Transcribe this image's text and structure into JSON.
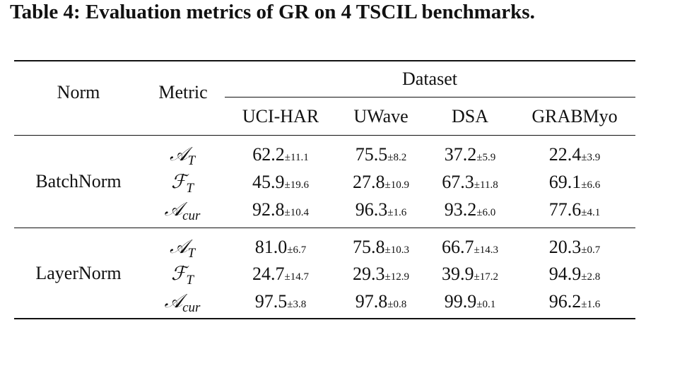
{
  "caption": "Table 4: Evaluation metrics of GR on 4 TSCIL benchmarks.",
  "header": {
    "norm": "Norm",
    "metric": "Metric",
    "dataset": "Dataset",
    "datasets": [
      "UCI-HAR",
      "UWave",
      "DSA",
      "GRABMyo"
    ]
  },
  "groups": [
    {
      "norm": "BatchNorm",
      "rows": [
        {
          "metric_base": "𝒜",
          "metric_sub": "T",
          "cells": [
            {
              "mean": "62.2",
              "std": "±11.1"
            },
            {
              "mean": "75.5",
              "std": "±8.2"
            },
            {
              "mean": "37.2",
              "std": "±5.9"
            },
            {
              "mean": "22.4",
              "std": "±3.9"
            }
          ]
        },
        {
          "metric_base": "ℱ",
          "metric_sub": "T",
          "cells": [
            {
              "mean": "45.9",
              "std": "±19.6"
            },
            {
              "mean": "27.8",
              "std": "±10.9"
            },
            {
              "mean": "67.3",
              "std": "±11.8"
            },
            {
              "mean": "69.1",
              "std": "±6.6"
            }
          ]
        },
        {
          "metric_base": "𝒜",
          "metric_sub": "cur",
          "cells": [
            {
              "mean": "92.8",
              "std": "±10.4"
            },
            {
              "mean": "96.3",
              "std": "±1.6"
            },
            {
              "mean": "93.2",
              "std": "±6.0"
            },
            {
              "mean": "77.6",
              "std": "±4.1"
            }
          ]
        }
      ]
    },
    {
      "norm": "LayerNorm",
      "rows": [
        {
          "metric_base": "𝒜",
          "metric_sub": "T",
          "cells": [
            {
              "mean": "81.0",
              "std": "±6.7"
            },
            {
              "mean": "75.8",
              "std": "±10.3"
            },
            {
              "mean": "66.7",
              "std": "±14.3"
            },
            {
              "mean": "20.3",
              "std": "±0.7"
            }
          ]
        },
        {
          "metric_base": "ℱ",
          "metric_sub": "T",
          "cells": [
            {
              "mean": "24.7",
              "std": "±14.7"
            },
            {
              "mean": "29.3",
              "std": "±12.9"
            },
            {
              "mean": "39.9",
              "std": "±17.2"
            },
            {
              "mean": "94.9",
              "std": "±2.8"
            }
          ]
        },
        {
          "metric_base": "𝒜",
          "metric_sub": "cur",
          "cells": [
            {
              "mean": "97.5",
              "std": "±3.8"
            },
            {
              "mean": "97.8",
              "std": "±0.8"
            },
            {
              "mean": "99.9",
              "std": "±0.1"
            },
            {
              "mean": "96.2",
              "std": "±1.6"
            }
          ]
        }
      ]
    }
  ]
}
